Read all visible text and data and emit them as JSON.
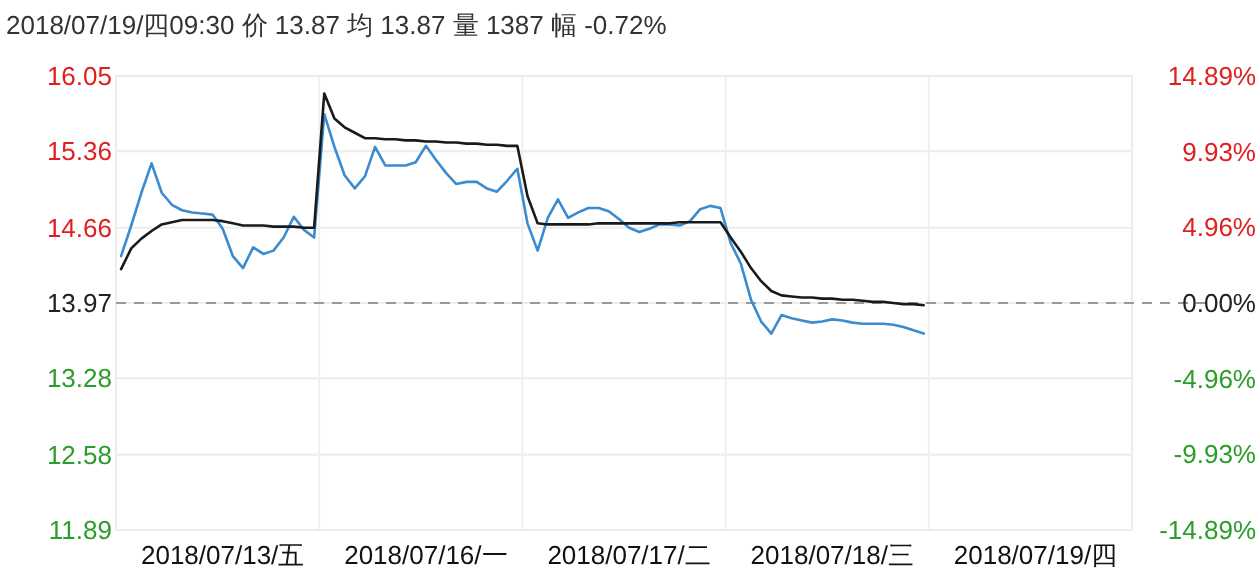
{
  "chart_data": {
    "type": "line",
    "title": "2018/07/19/四09:30 价 13.87 均 13.87 量 1387 幅 -0.72%",
    "categories": [
      null,
      null,
      null,
      null,
      null,
      null,
      null,
      null,
      null,
      null,
      "2018/07/13/五",
      null,
      null,
      null,
      null,
      null,
      null,
      null,
      null,
      null,
      null,
      null,
      null,
      null,
      null,
      null,
      null,
      null,
      null,
      null,
      "2018/07/16/一",
      null,
      null,
      null,
      null,
      null,
      null,
      null,
      null,
      null,
      null,
      null,
      null,
      null,
      null,
      null,
      null,
      null,
      null,
      null,
      "2018/07/17/二",
      null,
      null,
      null,
      null,
      null,
      null,
      null,
      null,
      null,
      null,
      null,
      null,
      null,
      null,
      null,
      null,
      null,
      null,
      null,
      "2018/07/18/三",
      null,
      null,
      null,
      null,
      null,
      null,
      null,
      null,
      null,
      null,
      null,
      null,
      null,
      null,
      null,
      null,
      null,
      null,
      null,
      "2018/07/19/四",
      null,
      null,
      null,
      null,
      null,
      null,
      null,
      null,
      null
    ],
    "ylim": [
      11.89,
      16.05
    ],
    "yticks": [
      16.05,
      15.36,
      14.66,
      13.97,
      13.28,
      12.58,
      11.89
    ],
    "y2lim": [
      -14.89,
      14.89
    ],
    "y2ticks": [
      {
        "value": 14.89,
        "label": "14.89%"
      },
      {
        "value": 9.93,
        "label": "9.93%"
      },
      {
        "value": 4.96,
        "label": "4.96%"
      },
      {
        "value": 0,
        "label": "0.00%"
      },
      {
        "value": -4.96,
        "label": "-4.96%"
      },
      {
        "value": -9.93,
        "label": "-9.93%"
      },
      {
        "value": -14.89,
        "label": "-14.89%"
      }
    ],
    "grid": true,
    "marker": "none",
    "line_style": "solid",
    "ref_lines": [
      {
        "axis": "y",
        "value": 13.97,
        "color": "#999999",
        "line_style": "dashed"
      }
    ],
    "series": [
      {
        "color": "#3a8bd0",
        "values": [
          14.4,
          14.68,
          14.98,
          15.25,
          14.98,
          14.87,
          14.82,
          14.8,
          14.79,
          14.78,
          14.65,
          14.4,
          14.29,
          14.48,
          14.42,
          14.45,
          14.57,
          14.76,
          14.64,
          14.57,
          15.7,
          15.4,
          15.14,
          15.02,
          15.13,
          15.4,
          15.23,
          15.23,
          15.23,
          15.26,
          15.41,
          15.28,
          15.16,
          15.06,
          15.08,
          15.08,
          15.02,
          14.99,
          15.09,
          15.2,
          14.7,
          14.45,
          14.75,
          14.92,
          14.75,
          14.8,
          14.84,
          14.84,
          14.81,
          14.74,
          14.66,
          14.62,
          14.65,
          14.69,
          14.69,
          14.68,
          14.72,
          14.83,
          14.86,
          14.84,
          14.52,
          14.33,
          14.0,
          13.8,
          13.69,
          13.86,
          13.83,
          13.81,
          13.79,
          13.8,
          13.82,
          13.81,
          13.79,
          13.78,
          13.78,
          13.78,
          13.77,
          13.75,
          13.72,
          13.69,
          null,
          null,
          null,
          null,
          null,
          null,
          null,
          null,
          null,
          null,
          null,
          null,
          null,
          null,
          null,
          null,
          null,
          null,
          null,
          null
        ]
      },
      {
        "color": "#1a1a1a",
        "values": [
          14.28,
          14.47,
          14.56,
          14.63,
          14.69,
          14.71,
          14.73,
          14.73,
          14.73,
          14.73,
          14.72,
          14.7,
          14.68,
          14.68,
          14.68,
          14.67,
          14.67,
          14.67,
          14.66,
          14.66,
          15.89,
          15.66,
          15.58,
          15.53,
          15.48,
          15.48,
          15.47,
          15.47,
          15.46,
          15.46,
          15.45,
          15.45,
          15.44,
          15.44,
          15.43,
          15.43,
          15.42,
          15.42,
          15.41,
          15.41,
          14.95,
          14.7,
          14.69,
          14.69,
          14.69,
          14.69,
          14.69,
          14.7,
          14.7,
          14.7,
          14.7,
          14.7,
          14.7,
          14.7,
          14.7,
          14.71,
          14.71,
          14.71,
          14.71,
          14.71,
          14.57,
          14.44,
          14.29,
          14.17,
          14.08,
          14.04,
          14.03,
          14.02,
          14.02,
          14.01,
          14.01,
          14.0,
          14.0,
          13.99,
          13.98,
          13.98,
          13.97,
          13.96,
          13.96,
          13.95,
          null,
          null,
          null,
          null,
          null,
          null,
          null,
          null,
          null,
          null,
          null,
          null,
          null,
          null,
          null,
          null,
          null,
          null,
          null,
          null
        ]
      }
    ]
  }
}
